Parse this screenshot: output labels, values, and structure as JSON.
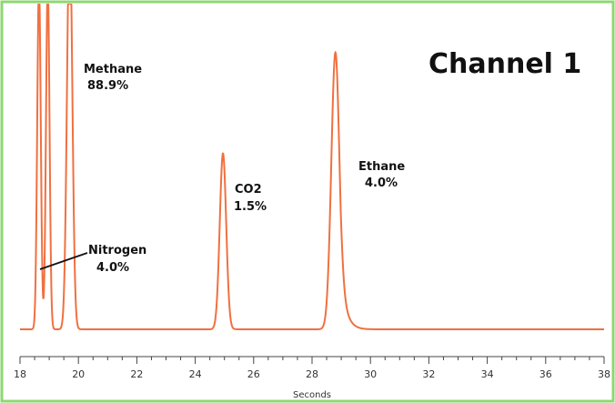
{
  "chart_data": {
    "type": "line",
    "title": "Channel 1",
    "xlabel": "Seconds",
    "ylabel": "",
    "xlim": [
      18,
      38
    ],
    "ylim": [
      0,
      1
    ],
    "x_ticks": [
      18,
      20,
      22,
      24,
      26,
      28,
      30,
      32,
      34,
      36,
      38
    ],
    "x_tick_labels": [
      "18",
      "20",
      "22",
      "24",
      "26",
      "28",
      "30",
      "32",
      "34",
      "36",
      "38"
    ],
    "grid": false,
    "series_color": "#f07040",
    "frame_color": "#8ed870",
    "baseline": 0.01,
    "peaks": [
      {
        "name": "Nitrogen",
        "label": "Nitrogen",
        "percent": "4.0%",
        "center": 18.65,
        "height": 1.2,
        "sigma": 0.06,
        "tail": 0.02
      },
      {
        "name": "Methane (a)",
        "label": "",
        "percent": "",
        "center": 18.95,
        "height": 1.2,
        "sigma": 0.06,
        "tail": 0.02
      },
      {
        "name": "Methane",
        "label": "Methane",
        "percent": "88.9%",
        "center": 19.7,
        "height": 1.4,
        "sigma": 0.09,
        "tail": 0.05
      },
      {
        "name": "CO2",
        "label": "CO2",
        "percent": "1.5%",
        "center": 24.95,
        "height": 0.61,
        "sigma": 0.11,
        "tail": 0.07
      },
      {
        "name": "Ethane",
        "label": "Ethane",
        "percent": "4.0%",
        "center": 28.8,
        "height": 0.96,
        "sigma": 0.14,
        "tail": 0.22
      }
    ],
    "annotations": [
      {
        "id": "methane",
        "name": "Methane",
        "value": "88.9%"
      },
      {
        "id": "co2",
        "name": "CO2",
        "value": "1.5%"
      },
      {
        "id": "ethane",
        "name": "Ethane",
        "value": "4.0%"
      },
      {
        "id": "nitrogen",
        "name": "Nitrogen",
        "value": "4.0%"
      }
    ]
  }
}
